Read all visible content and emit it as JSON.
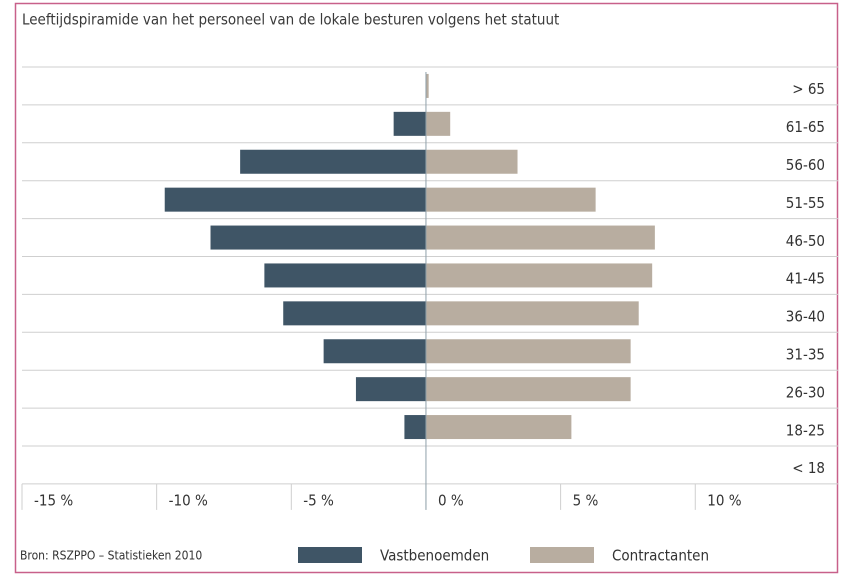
{
  "chart_data": {
    "type": "pyramid",
    "title": "Leeftijdspiramide van het personeel van de lokale besturen volgens het statuut",
    "source": "Bron: RSZPPO – Statistieken 2010",
    "categories": [
      "> 65",
      "61-65",
      "56-60",
      "51-55",
      "46-50",
      "41-45",
      "36-40",
      "31-35",
      "26-30",
      "18-25",
      "< 18"
    ],
    "series": [
      {
        "name": "Vastbenoemden",
        "color": "#3f5566",
        "values": [
          0,
          -1.2,
          -6.9,
          -9.7,
          -8.0,
          -6.0,
          -5.3,
          -3.8,
          -2.6,
          -0.8,
          0
        ]
      },
      {
        "name": "Contractanten",
        "color": "#b8ada0",
        "values": [
          0.1,
          0.9,
          3.4,
          6.3,
          8.5,
          8.4,
          7.9,
          7.6,
          7.6,
          5.4,
          0
        ]
      }
    ],
    "xlim": [
      -15,
      15.3
    ],
    "xticks": [
      {
        "value": -15,
        "label": "-15 %"
      },
      {
        "value": -10,
        "label": "-10 %"
      },
      {
        "value": -5,
        "label": "-5 %"
      },
      {
        "value": 0,
        "label": "0 %"
      },
      {
        "value": 5,
        "label": "5 %"
      },
      {
        "value": 10,
        "label": "10 %"
      }
    ],
    "grid": true
  }
}
